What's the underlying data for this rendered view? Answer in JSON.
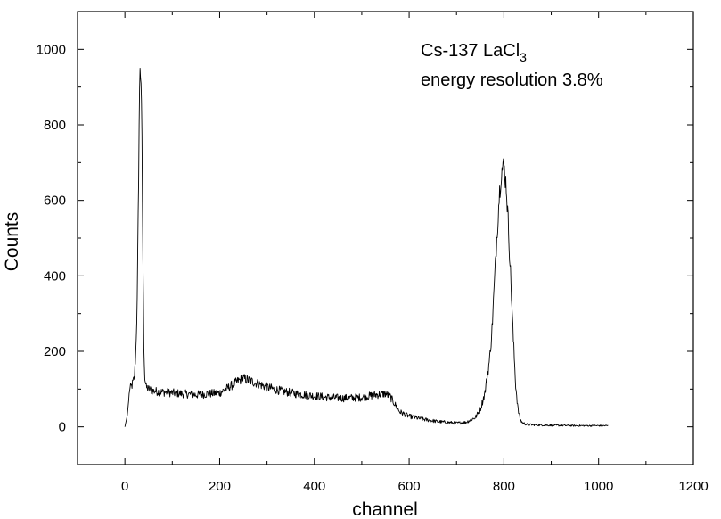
{
  "chart_data": {
    "type": "line",
    "title": "",
    "xlabel": "channel",
    "ylabel": "Counts",
    "xlim": [
      -100,
      1200
    ],
    "ylim": [
      -100,
      1100
    ],
    "xticks": [
      0,
      200,
      400,
      600,
      800,
      1000,
      1200
    ],
    "yticks": [
      0,
      200,
      400,
      600,
      800,
      1000
    ],
    "x_minor_step": 100,
    "y_minor_step": 100,
    "grid": false,
    "annotation": {
      "line1": "Cs-137 LaCl",
      "line1_subscript": "3",
      "line2": "energy resolution 3.8%"
    },
    "series": [
      {
        "color": "#000000",
        "x": [
          0,
          5,
          8,
          10,
          15,
          20,
          23,
          26,
          28,
          30,
          32,
          34,
          36,
          38,
          40,
          42,
          45,
          50,
          60,
          80,
          100,
          120,
          150,
          180,
          200,
          220,
          240,
          250,
          260,
          280,
          300,
          330,
          360,
          400,
          430,
          460,
          500,
          530,
          550,
          560,
          570,
          580,
          600,
          630,
          660,
          700,
          720,
          740,
          750,
          760,
          770,
          775,
          780,
          785,
          790,
          795,
          800,
          805,
          810,
          815,
          820,
          825,
          830,
          835,
          840,
          850,
          870,
          900,
          950,
          1000,
          1020
        ],
        "y": [
          0,
          30,
          70,
          100,
          110,
          130,
          200,
          330,
          550,
          800,
          960,
          920,
          750,
          450,
          220,
          130,
          105,
          100,
          95,
          92,
          90,
          88,
          85,
          88,
          90,
          105,
          122,
          128,
          124,
          115,
          105,
          95,
          88,
          82,
          78,
          76,
          78,
          85,
          88,
          80,
          60,
          40,
          28,
          20,
          14,
          10,
          12,
          25,
          45,
          90,
          180,
          260,
          380,
          500,
          610,
          680,
          690,
          640,
          520,
          380,
          230,
          110,
          45,
          18,
          10,
          6,
          5,
          4,
          3,
          3,
          3
        ]
      }
    ]
  }
}
